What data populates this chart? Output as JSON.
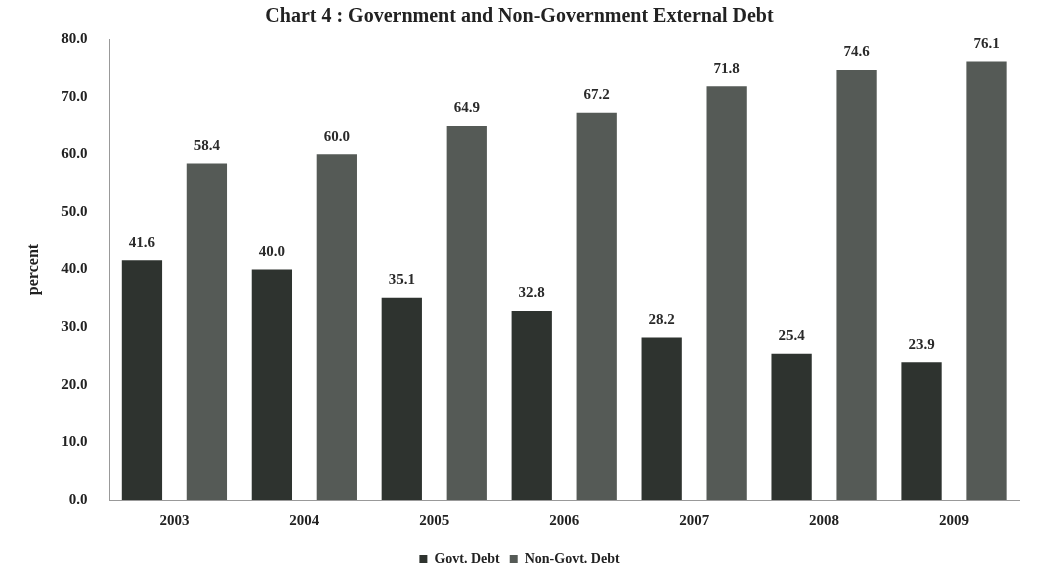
{
  "chart_data": {
    "type": "bar",
    "title": "Chart 4 : Government and Non-Government External Debt",
    "ylabel": "percent",
    "categories": [
      "2003",
      "2004",
      "2005",
      "2006",
      "2007",
      "2008",
      "2009"
    ],
    "series": [
      {
        "name": "Govt. Debt",
        "color": "#2e332f",
        "values": [
          41.6,
          40.0,
          35.1,
          32.8,
          28.2,
          25.4,
          23.9
        ],
        "value_labels": [
          "41.6",
          "40.0",
          "35.1",
          "32.8",
          "28.2",
          "25.4",
          "23.9"
        ]
      },
      {
        "name": "Non-Govt. Debt",
        "color": "#555a56",
        "values": [
          58.4,
          60.0,
          64.9,
          67.2,
          71.8,
          74.6,
          76.1
        ],
        "value_labels": [
          "58.4",
          "60.0",
          "64.9",
          "67.2",
          "71.8",
          "74.6",
          "76.1"
        ]
      }
    ],
    "ylim": [
      0,
      80
    ],
    "yticks": [
      {
        "value": 0,
        "label": "0.0"
      },
      {
        "value": 10,
        "label": "10.0"
      },
      {
        "value": 20,
        "label": "20.0"
      },
      {
        "value": 30,
        "label": "30.0"
      },
      {
        "value": 40,
        "label": "40.0"
      },
      {
        "value": 50,
        "label": "50.0"
      },
      {
        "value": 60,
        "label": "60.0"
      },
      {
        "value": 70,
        "label": "70.0"
      },
      {
        "value": 80,
        "label": "80.0"
      }
    ],
    "legend": "bottom",
    "grid": false
  }
}
